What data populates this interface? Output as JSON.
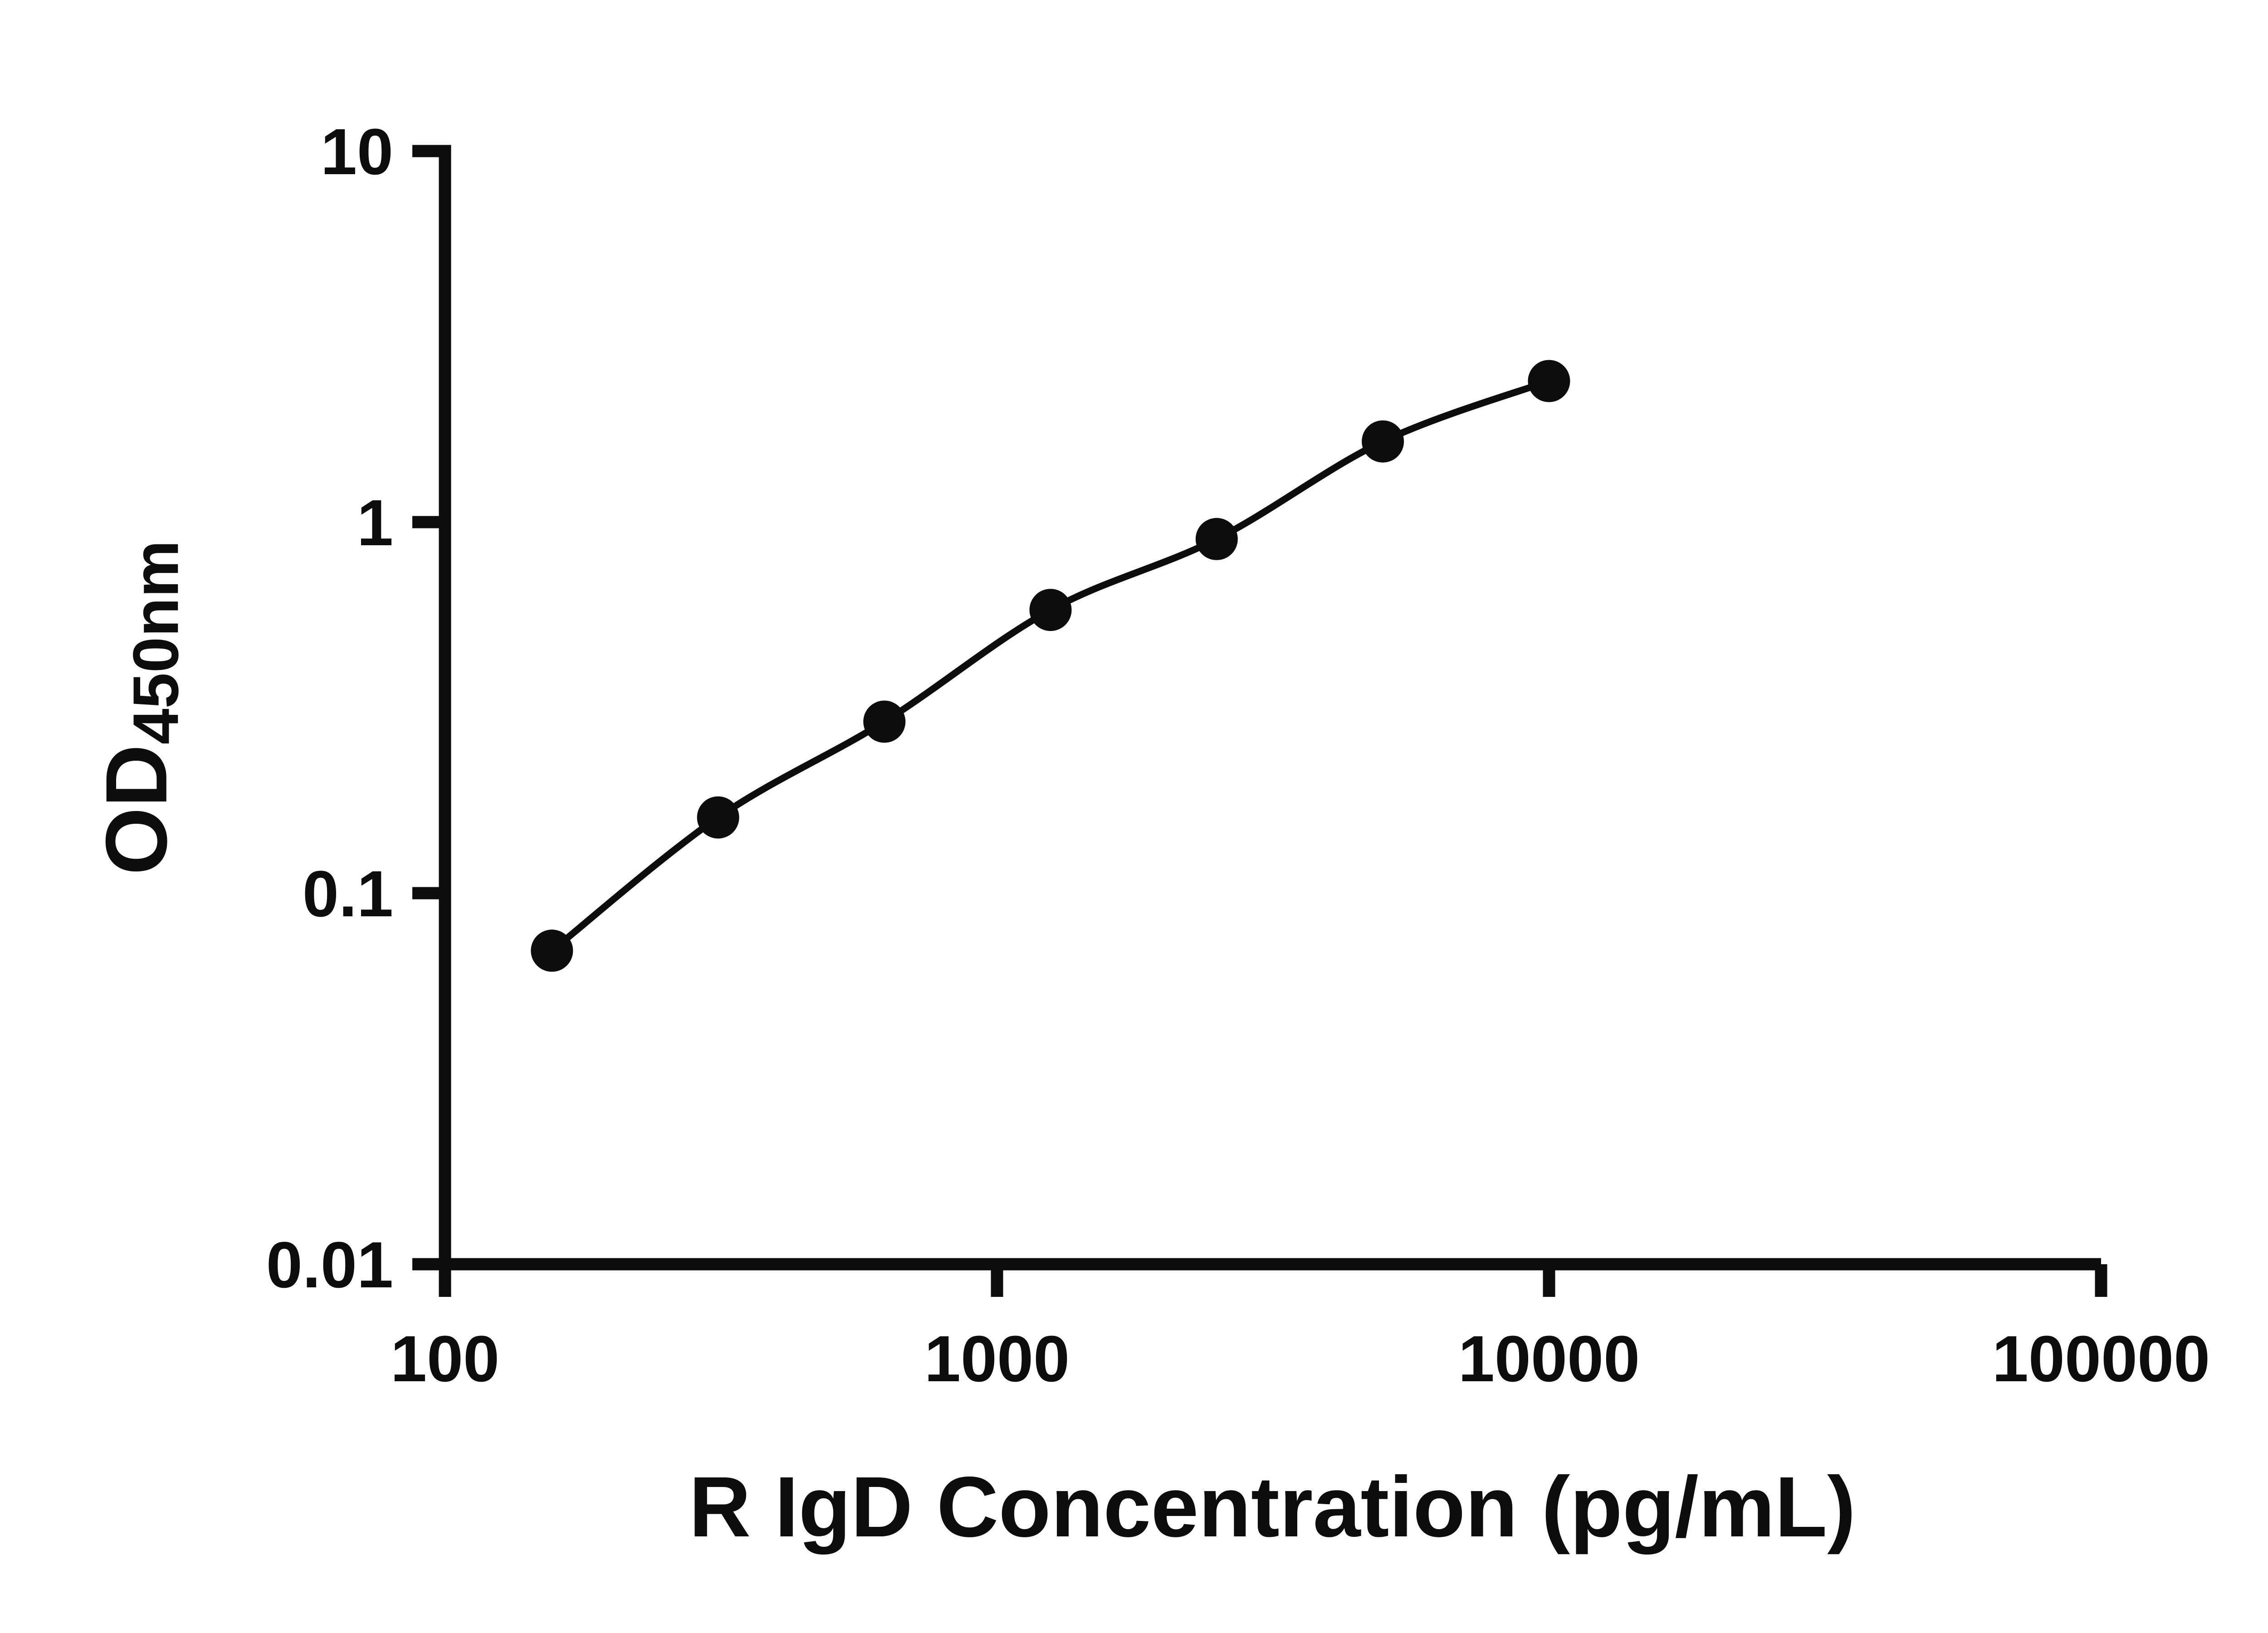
{
  "chart_data": {
    "type": "scatter",
    "subtype": "scatter-with-smooth-line",
    "title": "",
    "xlabel": "R IgD Concentration (pg/mL)",
    "ylabel": "OD450nm",
    "ylabel_main": "OD",
    "ylabel_sub": "450nm",
    "x_scale": "log",
    "y_scale": "log",
    "xlim": [
      100,
      100000
    ],
    "ylim": [
      0.01,
      10
    ],
    "x_tick_labels": [
      "100",
      "1000",
      "10000",
      "100000"
    ],
    "x_tick_values": [
      100,
      1000,
      10000,
      100000
    ],
    "y_tick_labels": [
      "0.01",
      "0.1",
      "1",
      "10"
    ],
    "y_tick_values": [
      0.01,
      0.1,
      1,
      10
    ],
    "x": [
      156.25,
      312.5,
      625,
      1250,
      2500,
      5000,
      10000
    ],
    "y": [
      0.07,
      0.16,
      0.29,
      0.58,
      0.9,
      1.65,
      2.4
    ],
    "marker": "circle",
    "marker_color": "#0d0d0d",
    "line_color": "#0d0d0d",
    "axis_color": "#0d0d0d",
    "background": "#ffffff",
    "grid": false,
    "legend": false
  }
}
